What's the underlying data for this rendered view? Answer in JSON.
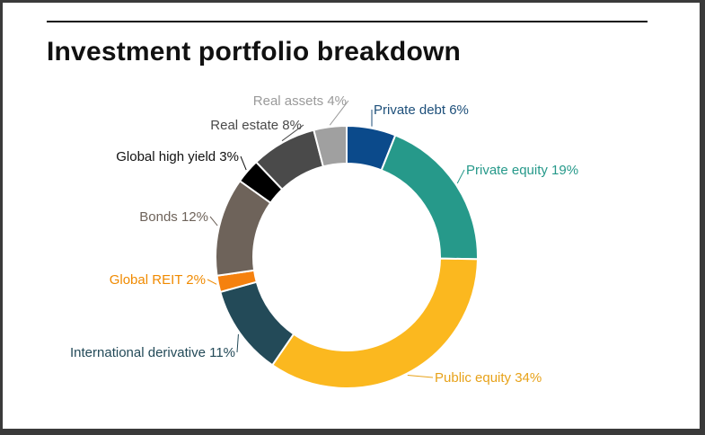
{
  "title": "Investment portfolio breakdown",
  "chart_data": {
    "type": "pie",
    "style": "donut",
    "title": "Investment portfolio breakdown",
    "slices": [
      {
        "label": "Private debt 6%",
        "name": "Private debt",
        "value": 6,
        "color": "#0b4a8b",
        "label_color": "#1d4f7a"
      },
      {
        "label": "Private equity 19%",
        "name": "Private equity",
        "value": 19,
        "color": "#26998a",
        "label_color": "#26998a"
      },
      {
        "label": "Public equity 34%",
        "name": "Public equity",
        "value": 34,
        "color": "#fbb81f",
        "label_color": "#e7a21a"
      },
      {
        "label": "International derivative 11%",
        "name": "International derivative",
        "value": 11,
        "color": "#234a58",
        "label_color": "#234a58"
      },
      {
        "label": "Global REIT 2%",
        "name": "Global REIT",
        "value": 2,
        "color": "#f5810f",
        "label_color": "#f08a00"
      },
      {
        "label": "Bonds 12%",
        "name": "Bonds",
        "value": 12,
        "color": "#6e635a",
        "label_color": "#6e635a"
      },
      {
        "label": "Global high yield 3%",
        "name": "Global high yield",
        "value": 3,
        "color": "#000000",
        "label_color": "#111111"
      },
      {
        "label": "Real estate 8%",
        "name": "Real estate",
        "value": 8,
        "color": "#4a4a4a",
        "label_color": "#4a4a4a"
      },
      {
        "label": "Real assets 4%",
        "name": "Real assets",
        "value": 4,
        "color": "#a0a0a0",
        "label_color": "#9a9a9a"
      }
    ]
  }
}
